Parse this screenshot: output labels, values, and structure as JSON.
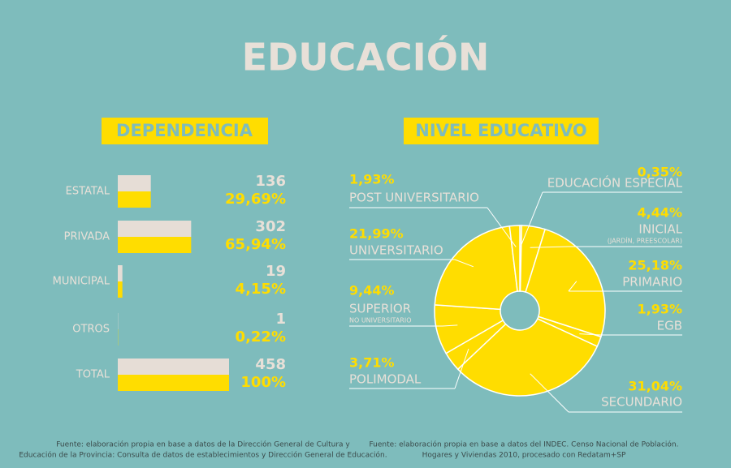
{
  "title": "EDUCACIÓN",
  "chart_data": [
    {
      "type": "bar",
      "title": "DEPENDENCIA",
      "categories": [
        "ESTATAL",
        "PRIVADA",
        "MUNICIPAL",
        "OTROS",
        "TOTAL"
      ],
      "series": [
        {
          "color": "#e6ddd6",
          "values": [
            136,
            302,
            19,
            1,
            458
          ]
        },
        {
          "color": "#ffdd00",
          "values": [
            29.69,
            65.94,
            4.15,
            0.22,
            100
          ],
          "value_labels": [
            "29,69%",
            "65,94%",
            "4,15%",
            "0,22%",
            "100%"
          ]
        }
      ],
      "source": [
        "Fuente: elaboración propia en base a datos de la Dirección General de Cultura y",
        "Educación de la Provincia:  Consulta de datos de establecimientos y Dirección General de Educación."
      ]
    },
    {
      "type": "donut",
      "title": "NIVEL EDUCATIVO",
      "categories": [
        "EDUCACIÓN ESPECIAL",
        "INICIAL",
        "PRIMARIO",
        "EGB",
        "SECUNDARIO",
        "POLIMODAL",
        "SUPERIOR",
        "UNIVERSITARIO",
        "POST UNIVERSITARIO"
      ],
      "sublabels": [
        null,
        "(JARDÍN, PREESCOLAR)",
        null,
        null,
        null,
        null,
        "NO UNIVERSITARIO",
        null,
        null
      ],
      "values": [
        0.35,
        4.44,
        25.18,
        1.93,
        31.04,
        3.71,
        9.44,
        21.99,
        1.93
      ],
      "value_labels": [
        "0,35%",
        "4,44%",
        "25,18%",
        "1,93%",
        "31,04%",
        "3,71%",
        "9,44%",
        "21,99%",
        "1,93%"
      ],
      "color": "#ffdd00",
      "source": [
        "Fuente: elaboración propia en base a datos del INDEC. Censo Nacional de Población.",
        "Hogares y  Viviendas 2010, procesado con Redatam+SP"
      ]
    }
  ]
}
